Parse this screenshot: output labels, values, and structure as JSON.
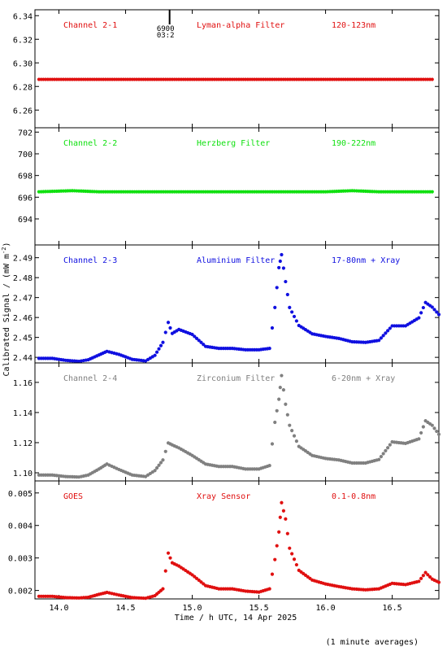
{
  "figure": {
    "ylabel": "Calibrated Signal / (mW m",
    "ylabel_sup": "-2",
    "ylabel_end": ")",
    "xlabel": "Time / h UTC, 14 Apr 2025",
    "footnote": "(1 minute averages)",
    "marker_label_top": "6900",
    "marker_label_bottom": "03:2"
  },
  "chart_data": [
    {
      "type": "scatter",
      "channel": "Channel 2-1",
      "filter": "Lyman-alpha Filter",
      "band": "120-123nm",
      "color": "#e01010",
      "xlim": [
        13.82,
        16.85
      ],
      "ylim": [
        6.245,
        6.345
      ],
      "yticks": [
        "6.26",
        "6.28",
        "6.30",
        "6.32",
        "6.34"
      ],
      "series": [
        {
          "x": [
            13.85,
            14.0,
            14.2,
            14.4,
            14.6,
            14.8,
            15.0,
            15.2,
            15.4,
            15.6,
            15.8,
            16.0,
            16.2,
            16.4,
            16.6,
            16.8
          ],
          "y": [
            6.286,
            6.286,
            6.286,
            6.286,
            6.286,
            6.286,
            6.286,
            6.286,
            6.286,
            6.286,
            6.286,
            6.286,
            6.286,
            6.286,
            6.286,
            6.286
          ]
        }
      ]
    },
    {
      "type": "scatter",
      "channel": "Channel 2-2",
      "filter": "Herzberg Filter",
      "band": "190-222nm",
      "color": "#10e010",
      "xlim": [
        13.82,
        16.85
      ],
      "ylim": [
        691.6,
        702.4
      ],
      "yticks": [
        "694",
        "696",
        "698",
        "700",
        "702"
      ],
      "series": [
        {
          "x": [
            13.85,
            14.1,
            14.3,
            14.5,
            14.7,
            14.9,
            15.1,
            15.3,
            15.5,
            15.75,
            16.0,
            16.2,
            16.4,
            16.6,
            16.8
          ],
          "y": [
            696.5,
            696.6,
            696.5,
            696.5,
            696.5,
            696.5,
            696.5,
            696.5,
            696.5,
            696.5,
            696.5,
            696.6,
            696.5,
            696.5,
            696.5
          ]
        }
      ]
    },
    {
      "type": "scatter",
      "channel": "Channel 2-3",
      "filter": "Aluminium Filter",
      "band": "17-80nm + Xray",
      "color": "#1010e0",
      "xlim": [
        13.82,
        16.85
      ],
      "ylim": [
        2.4372,
        2.4964
      ],
      "yticks": [
        "2.44",
        "2.45",
        "2.46",
        "2.47",
        "2.48",
        "2.49"
      ],
      "series": [
        {
          "x": [
            13.85,
            13.95,
            14.05,
            14.15,
            14.22,
            14.3,
            14.36,
            14.45,
            14.55,
            14.65,
            14.72,
            14.78,
            14.82,
            14.85,
            14.9,
            15.0,
            15.1,
            15.2,
            15.3,
            15.4,
            15.5,
            15.58,
            15.62,
            15.65,
            15.67,
            15.7,
            15.73,
            15.8,
            15.9,
            16.0,
            16.1,
            16.2,
            16.3,
            16.4,
            16.5,
            16.6,
            16.7,
            16.75,
            16.8,
            16.85
          ],
          "y": [
            2.4395,
            2.4395,
            2.4385,
            2.438,
            2.4388,
            2.4412,
            2.443,
            2.4415,
            2.439,
            2.4382,
            2.441,
            2.4475,
            2.4575,
            2.452,
            2.454,
            2.4515,
            2.4455,
            2.4445,
            2.4445,
            2.4438,
            2.4438,
            2.4445,
            2.465,
            2.485,
            2.4915,
            2.478,
            2.465,
            2.456,
            2.4518,
            2.4505,
            2.4495,
            2.4478,
            2.4475,
            2.4485,
            2.4558,
            2.4558,
            2.4598,
            2.4675,
            2.4652,
            2.4615
          ]
        }
      ]
    },
    {
      "type": "scatter",
      "channel": "Channel 2-4",
      "filter": "Zirconium Filter",
      "band": "6-20nm + Xray",
      "color": "#808080",
      "xlim": [
        13.82,
        16.85
      ],
      "ylim": [
        1.0946,
        1.1729
      ],
      "yticks": [
        "1.10",
        "1.12",
        "1.14",
        "1.16"
      ],
      "series": [
        {
          "x": [
            13.85,
            13.95,
            14.05,
            14.15,
            14.22,
            14.3,
            14.36,
            14.45,
            14.55,
            14.65,
            14.72,
            14.78,
            14.82,
            14.85,
            14.9,
            15.0,
            15.1,
            15.2,
            15.3,
            15.4,
            15.5,
            15.58,
            15.62,
            15.65,
            15.67,
            15.7,
            15.73,
            15.8,
            15.9,
            16.0,
            16.1,
            16.2,
            16.3,
            16.4,
            16.5,
            16.6,
            16.7,
            16.75,
            16.8,
            16.85
          ],
          "y": [
            1.0985,
            1.0985,
            1.0975,
            1.0972,
            1.0985,
            1.1025,
            1.1058,
            1.1022,
            1.0985,
            1.0975,
            1.1015,
            1.1085,
            1.1198,
            1.1185,
            1.1165,
            1.1115,
            1.1058,
            1.1042,
            1.1042,
            1.1025,
            1.1025,
            1.1048,
            1.1335,
            1.1488,
            1.1645,
            1.1455,
            1.1315,
            1.1175,
            1.1115,
            1.1095,
            1.1085,
            1.1065,
            1.1065,
            1.1088,
            1.1205,
            1.1195,
            1.1225,
            1.1345,
            1.1315,
            1.1255
          ]
        }
      ]
    },
    {
      "type": "scatter",
      "channel": "GOES",
      "filter": "Xray Sensor",
      "band": "0.1-0.8nm",
      "color": "#e01010",
      "xlim": [
        13.82,
        16.85
      ],
      "ylim": [
        0.00174,
        0.00537
      ],
      "yticks": [
        "0.002",
        "0.003",
        "0.004",
        "0.005"
      ],
      "series": [
        {
          "x": [
            13.85,
            13.95,
            14.05,
            14.15,
            14.22,
            14.3,
            14.36,
            14.45,
            14.55,
            14.65,
            14.72,
            14.78,
            14.82,
            14.85,
            14.9,
            15.0,
            15.1,
            15.2,
            15.3,
            15.4,
            15.5,
            15.58,
            15.62,
            15.65,
            15.67,
            15.7,
            15.73,
            15.8,
            15.9,
            16.0,
            16.1,
            16.2,
            16.3,
            16.4,
            16.5,
            16.6,
            16.7,
            16.75,
            16.8,
            16.85
          ],
          "y": [
            0.00182,
            0.00182,
            0.00178,
            0.00177,
            0.00179,
            0.00188,
            0.00194,
            0.00186,
            0.00178,
            0.00176,
            0.00184,
            0.00205,
            0.00315,
            0.00285,
            0.00275,
            0.00248,
            0.00215,
            0.00205,
            0.00205,
            0.00198,
            0.00195,
            0.00205,
            0.00295,
            0.0038,
            0.0047,
            0.0042,
            0.0033,
            0.00262,
            0.00232,
            0.0022,
            0.00212,
            0.00205,
            0.00202,
            0.00205,
            0.00222,
            0.00218,
            0.00228,
            0.00255,
            0.00235,
            0.00225
          ]
        }
      ]
    }
  ],
  "xaxis": {
    "ticks": [
      14.0,
      14.5,
      15.0,
      15.5,
      16.0,
      16.5
    ],
    "tick_labels": [
      "14.0",
      "14.5",
      "15.0",
      "15.5",
      "16.0",
      "16.5"
    ],
    "marker_x": 14.83
  }
}
